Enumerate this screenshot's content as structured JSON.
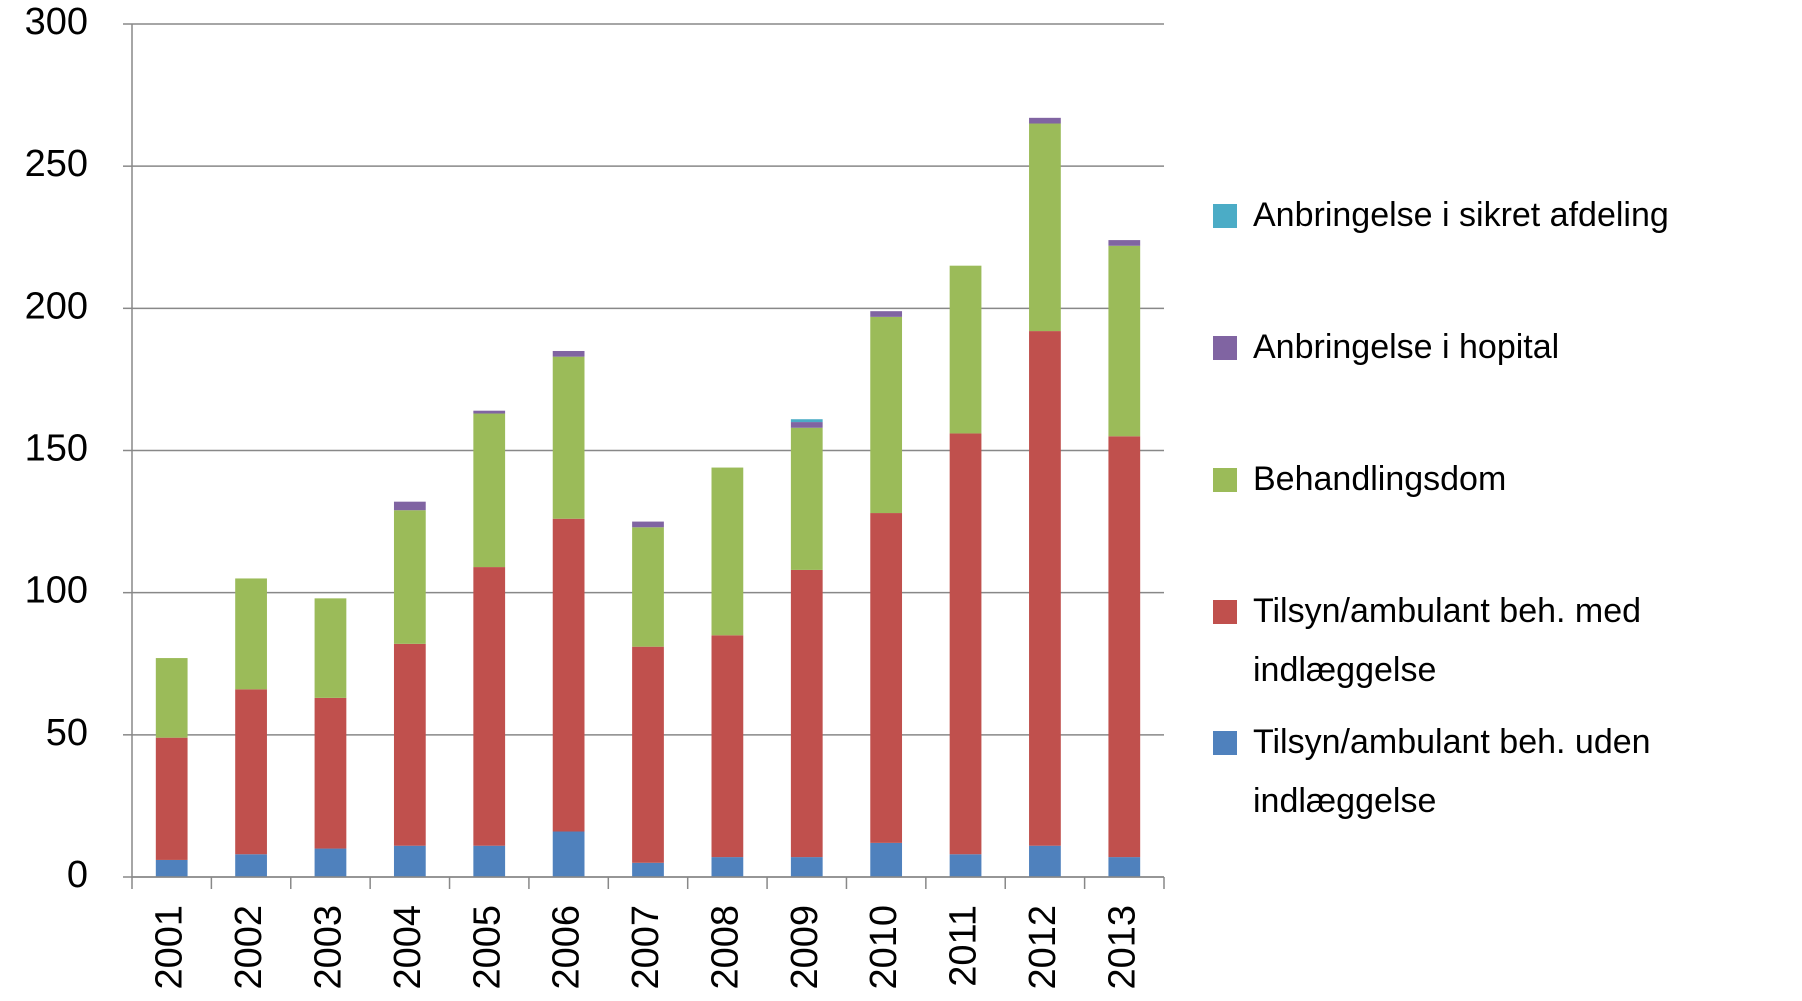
{
  "chart_data": {
    "type": "stacked_bar",
    "categories": [
      "2001",
      "2002",
      "2003",
      "2004",
      "2005",
      "2006",
      "2007",
      "2008",
      "2009",
      "2010",
      "2011",
      "2012",
      "2013"
    ],
    "series": [
      {
        "name": "Tilsyn/ambulant beh. uden indlæggelse",
        "color": "#4f81bd",
        "values": [
          6,
          8,
          10,
          11,
          11,
          16,
          5,
          7,
          7,
          12,
          8,
          11,
          7
        ]
      },
      {
        "name": "Tilsyn/ambulant beh. med indlæggelse",
        "color": "#c0504d",
        "values": [
          43,
          58,
          53,
          71,
          98,
          110,
          76,
          78,
          101,
          116,
          148,
          181,
          148
        ]
      },
      {
        "name": "Behandlingsdom",
        "color": "#9bbb59",
        "values": [
          28,
          39,
          35,
          47,
          54,
          57,
          42,
          59,
          50,
          69,
          59,
          73,
          67
        ]
      },
      {
        "name": "Anbringelse i hopital",
        "color": "#8064a2",
        "values": [
          0,
          0,
          0,
          3,
          1,
          2,
          2,
          0,
          2,
          2,
          0,
          2,
          2
        ]
      },
      {
        "name": "Anbringelse i sikret afdeling",
        "color": "#4bacc6",
        "values": [
          0,
          0,
          0,
          0,
          0,
          0,
          0,
          0,
          1,
          0,
          0,
          0,
          0
        ]
      }
    ],
    "ylim": [
      0,
      300
    ],
    "yticks": [
      0,
      50,
      100,
      150,
      200,
      250,
      300
    ],
    "grid": true,
    "legend": "right"
  }
}
